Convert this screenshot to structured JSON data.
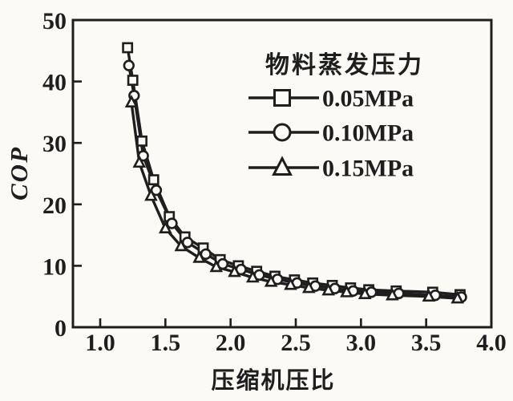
{
  "page": {
    "background": "#fbfaf7",
    "ink": "#1e1e1e",
    "paper": "#fbfaf7"
  },
  "chart_data": {
    "type": "line",
    "title": "",
    "xlabel": "压缩机压比",
    "ylabel": "COP",
    "legend_title": "物料蒸发压力",
    "legend_position": "inside-top-right",
    "grid": false,
    "xlim": [
      0.79,
      4.0
    ],
    "ylim": [
      0,
      50
    ],
    "x_ticks": [
      "1.0",
      "1.5",
      "2.0",
      "2.5",
      "3.0",
      "3.5",
      "4.0"
    ],
    "y_ticks": [
      "0",
      "10",
      "20",
      "30",
      "40",
      "50"
    ],
    "series": [
      {
        "name": "0.05MPa",
        "marker": "square",
        "points": [
          [
            1.21,
            45.5
          ],
          [
            1.25,
            40.2
          ],
          [
            1.32,
            30.3
          ],
          [
            1.41,
            24.0
          ],
          [
            1.53,
            18.0
          ],
          [
            1.65,
            14.7
          ],
          [
            1.79,
            12.9
          ],
          [
            1.92,
            11.0
          ],
          [
            2.06,
            10.0
          ],
          [
            2.2,
            9.1
          ],
          [
            2.34,
            8.3
          ],
          [
            2.49,
            7.7
          ],
          [
            2.63,
            7.2
          ],
          [
            2.78,
            6.8
          ],
          [
            2.92,
            6.4
          ],
          [
            3.06,
            6.1
          ],
          [
            3.27,
            5.9
          ],
          [
            3.55,
            5.7
          ],
          [
            3.76,
            5.3
          ]
        ]
      },
      {
        "name": "0.10MPa",
        "marker": "circle",
        "points": [
          [
            1.22,
            42.6
          ],
          [
            1.26,
            37.7
          ],
          [
            1.33,
            27.9
          ],
          [
            1.43,
            22.3
          ],
          [
            1.55,
            16.9
          ],
          [
            1.67,
            13.8
          ],
          [
            1.81,
            11.9
          ],
          [
            1.94,
            10.3
          ],
          [
            2.08,
            9.4
          ],
          [
            2.22,
            8.5
          ],
          [
            2.36,
            7.8
          ],
          [
            2.51,
            7.2
          ],
          [
            2.65,
            6.7
          ],
          [
            2.8,
            6.3
          ],
          [
            2.94,
            5.9
          ],
          [
            3.08,
            5.7
          ],
          [
            3.29,
            5.5
          ],
          [
            3.57,
            5.2
          ],
          [
            3.77,
            4.9
          ]
        ]
      },
      {
        "name": "0.15MPa",
        "marker": "triangle",
        "points": [
          [
            1.24,
            36.6
          ],
          [
            1.3,
            26.8
          ],
          [
            1.39,
            21.4
          ],
          [
            1.5,
            16.1
          ],
          [
            1.62,
            13.2
          ],
          [
            1.76,
            11.3
          ],
          [
            1.89,
            9.8
          ],
          [
            2.03,
            9.0
          ],
          [
            2.17,
            8.1
          ],
          [
            2.31,
            7.4
          ],
          [
            2.46,
            6.9
          ],
          [
            2.6,
            6.4
          ],
          [
            2.75,
            6.0
          ],
          [
            2.89,
            5.7
          ],
          [
            3.03,
            5.4
          ],
          [
            3.24,
            5.2
          ],
          [
            3.52,
            5.0
          ],
          [
            3.74,
            4.7
          ]
        ]
      }
    ]
  }
}
